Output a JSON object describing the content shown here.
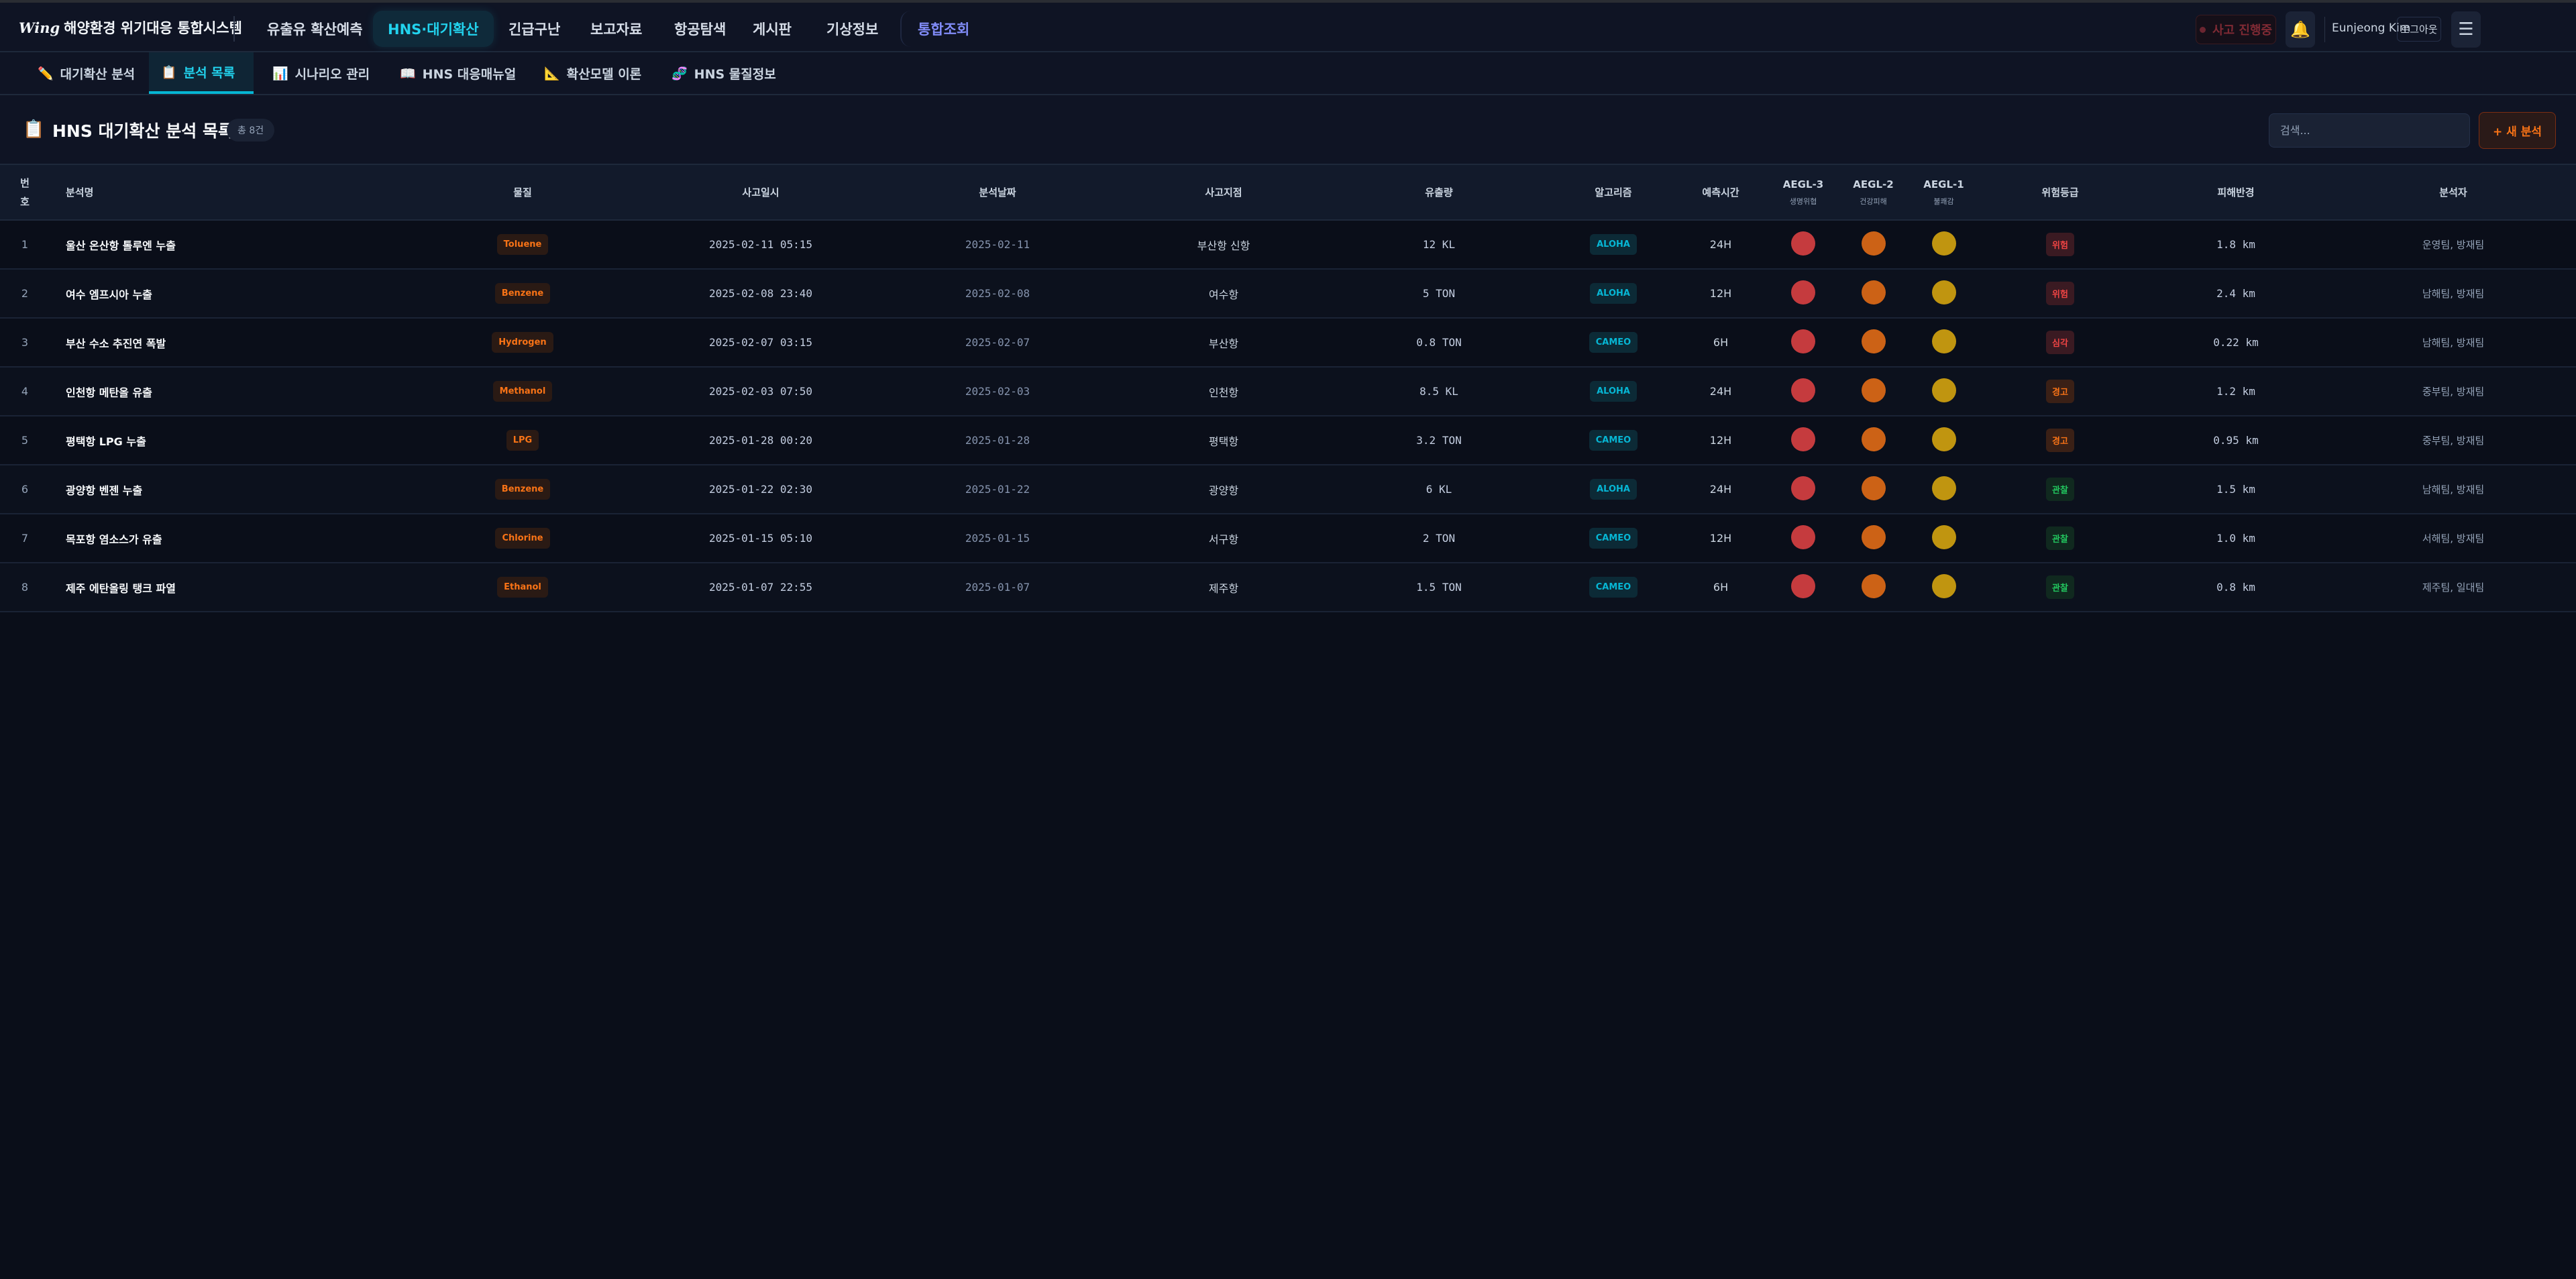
{
  "app": {
    "logo_mark": "Wing",
    "title": "해양환경 위기대응 통합시스템"
  },
  "nav": [
    {
      "label": "유출유 확산예측"
    },
    {
      "label": "HNS·대기확산",
      "active": true
    },
    {
      "label": "긴급구난"
    },
    {
      "label": "보고자료"
    },
    {
      "label": "항공탐색"
    },
    {
      "label": "게시판"
    },
    {
      "label": "기상정보"
    },
    {
      "label": "통합조회"
    }
  ],
  "header_right": {
    "incident_label": "사고 진행중",
    "bell_icon": "bell-icon",
    "user_name": "Eunjeong Kim",
    "logout_label": "로그아웃",
    "menu_icon": "hamburger-icon"
  },
  "subtabs": [
    {
      "icon": "✏️",
      "label": "대기확산 분석"
    },
    {
      "icon": "📋",
      "label": "분석 목록",
      "active": true
    },
    {
      "icon": "📊",
      "label": "시나리오 관리"
    },
    {
      "icon": "📖",
      "label": "HNS 대응매뉴얼"
    },
    {
      "icon": "📐",
      "label": "확산모델 이론"
    },
    {
      "icon": "🧬",
      "label": "HNS 물질정보"
    }
  ],
  "page": {
    "icon": "📋",
    "title": "HNS 대기확산 분석 목록",
    "count": "총 8건",
    "search_placeholder": "검색...",
    "new_button": "+ 새 분석"
  },
  "colors": {
    "aegl3": "#c53b3e",
    "aegl2": "#cc6216",
    "aegl1": "#c09510",
    "accent": "#22d3ee",
    "danger": "#ef4444",
    "warning": "#f97316",
    "observe": "#22c55e"
  },
  "table": {
    "headers": {
      "no": "번호",
      "name": "분석명",
      "substance": "물질",
      "incident_time": "사고일시",
      "analysis_date": "분석날짜",
      "location": "사고지점",
      "amount": "유출량",
      "algorithm": "알고리즘",
      "forecast": "예측시간",
      "aegl3": "AEGL-3",
      "aegl3_sub": "생명위협",
      "aegl2": "AEGL-2",
      "aegl2_sub": "건강피해",
      "aegl1": "AEGL-1",
      "aegl1_sub": "불쾌감",
      "risk": "위험등급",
      "radius": "피해반경",
      "analyst": "분석자"
    },
    "rows": [
      {
        "no": "1",
        "name": "울산 온산항 톨루엔 누출",
        "substance": "Toluene",
        "incident_time": "2025-02-11 05:15",
        "analysis_date": "2025-02-11",
        "location": "부산항 신항",
        "amount": "12 KL",
        "algorithm": "ALOHA",
        "forecast": "24H",
        "risk": "위험",
        "radius": "1.8 km",
        "analyst": "운영팀, 방재팀"
      },
      {
        "no": "2",
        "name": "여수 엠프시아 누출",
        "substance": "Benzene",
        "incident_time": "2025-02-08 23:40",
        "analysis_date": "2025-02-08",
        "location": "여수항",
        "amount": "5 TON",
        "algorithm": "ALOHA",
        "forecast": "12H",
        "risk": "위험",
        "radius": "2.4 km",
        "analyst": "남해팀, 방재팀"
      },
      {
        "no": "3",
        "name": "부산 수소 추진연 폭발",
        "substance": "Hydrogen",
        "incident_time": "2025-02-07 03:15",
        "analysis_date": "2025-02-07",
        "location": "부산항",
        "amount": "0.8 TON",
        "algorithm": "CAMEO",
        "forecast": "6H",
        "risk": "심각",
        "radius": "0.22 km",
        "analyst": "남해팀, 방재팀"
      },
      {
        "no": "4",
        "name": "인천항 메탄올 유출",
        "substance": "Methanol",
        "incident_time": "2025-02-03 07:50",
        "analysis_date": "2025-02-03",
        "location": "인천항",
        "amount": "8.5 KL",
        "algorithm": "ALOHA",
        "forecast": "24H",
        "risk": "경고",
        "radius": "1.2 km",
        "analyst": "중부팀, 방재팀"
      },
      {
        "no": "5",
        "name": "평택항 LPG 누출",
        "substance": "LPG",
        "incident_time": "2025-01-28 00:20",
        "analysis_date": "2025-01-28",
        "location": "평택항",
        "amount": "3.2 TON",
        "algorithm": "CAMEO",
        "forecast": "12H",
        "risk": "경고",
        "radius": "0.95 km",
        "analyst": "중부팀, 방재팀"
      },
      {
        "no": "6",
        "name": "광양항 벤젠 누출",
        "substance": "Benzene",
        "incident_time": "2025-01-22 02:30",
        "analysis_date": "2025-01-22",
        "location": "광양항",
        "amount": "6 KL",
        "algorithm": "ALOHA",
        "forecast": "24H",
        "risk": "관찰",
        "radius": "1.5 km",
        "analyst": "남해팀, 방재팀"
      },
      {
        "no": "7",
        "name": "목포항 염소스가 유출",
        "substance": "Chlorine",
        "incident_time": "2025-01-15 05:10",
        "analysis_date": "2025-01-15",
        "location": "서구항",
        "amount": "2 TON",
        "algorithm": "CAMEO",
        "forecast": "12H",
        "risk": "관찰",
        "radius": "1.0 km",
        "analyst": "서해팀, 방재팀"
      },
      {
        "no": "8",
        "name": "제주 에탄올링 탱크 파열",
        "substance": "Ethanol",
        "incident_time": "2025-01-07 22:55",
        "analysis_date": "2025-01-07",
        "location": "제주항",
        "amount": "1.5 TON",
        "algorithm": "CAMEO",
        "forecast": "6H",
        "risk": "관찰",
        "radius": "0.8 km",
        "analyst": "제주팀, 일대팀"
      }
    ]
  }
}
